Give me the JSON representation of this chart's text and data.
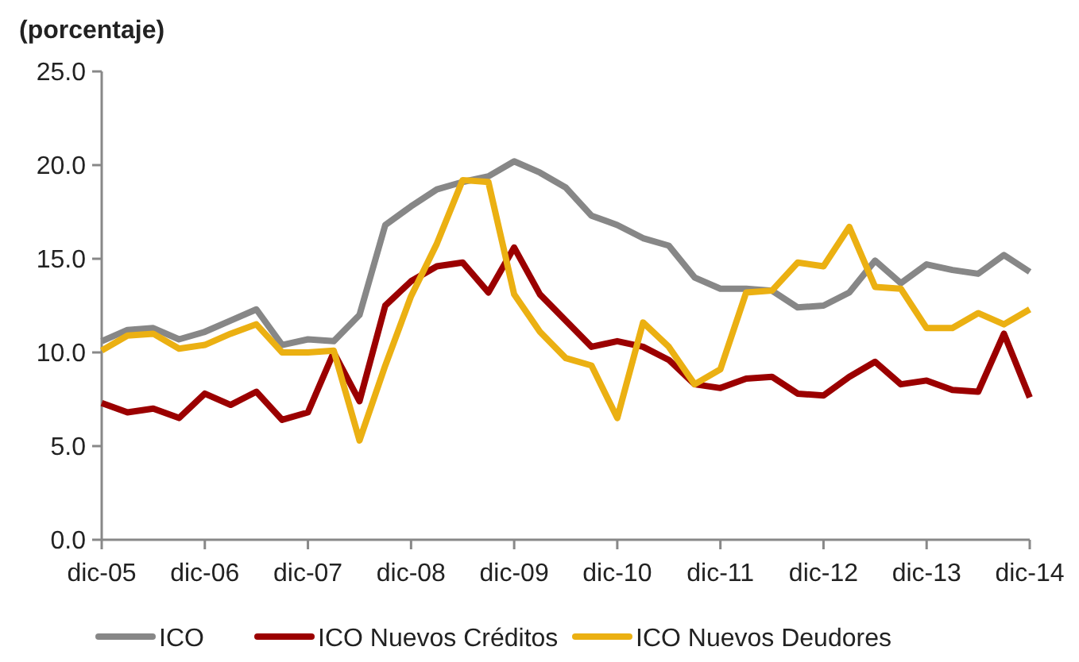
{
  "chart_data": {
    "type": "line",
    "title": "(porcentaje)",
    "categories": [
      "dic-05",
      null,
      null,
      null,
      "dic-06",
      null,
      null,
      null,
      "dic-07",
      null,
      null,
      null,
      "dic-08",
      null,
      null,
      null,
      "dic-09",
      null,
      null,
      null,
      "dic-10",
      null,
      null,
      null,
      "dic-11",
      null,
      null,
      null,
      "dic-12",
      null,
      null,
      null,
      "dic-13",
      null,
      null,
      null,
      "dic-14"
    ],
    "series": [
      {
        "name": "ICO",
        "color": "#878787",
        "values": [
          10.6,
          11.2,
          11.3,
          10.7,
          11.1,
          11.7,
          12.3,
          10.4,
          10.7,
          10.6,
          12.0,
          16.8,
          17.8,
          18.7,
          19.1,
          19.4,
          20.2,
          19.6,
          18.8,
          17.3,
          16.8,
          16.1,
          15.7,
          14.0,
          13.4,
          13.4,
          13.3,
          12.4,
          12.5,
          13.2,
          14.9,
          13.7,
          14.7,
          14.4,
          14.2,
          15.2,
          14.3
        ]
      },
      {
        "name": "ICO Nuevos Créditos",
        "color": "#9b0000",
        "values": [
          7.3,
          6.8,
          7.0,
          6.5,
          7.8,
          7.2,
          7.9,
          6.4,
          6.8,
          10.0,
          7.4,
          12.5,
          13.8,
          14.6,
          14.8,
          13.2,
          15.6,
          13.1,
          11.7,
          10.3,
          10.6,
          10.3,
          9.6,
          8.3,
          8.1,
          8.6,
          8.7,
          7.8,
          7.7,
          8.7,
          9.5,
          8.3,
          8.5,
          8.0,
          7.9,
          11.0,
          7.6
        ]
      },
      {
        "name": "ICO Nuevos Deudores",
        "color": "#ebb012",
        "values": [
          10.1,
          10.9,
          11.0,
          10.2,
          10.4,
          11.0,
          11.5,
          10.0,
          10.0,
          10.1,
          5.3,
          9.3,
          13.0,
          15.8,
          19.2,
          19.1,
          13.1,
          11.1,
          9.7,
          9.3,
          6.5,
          11.6,
          10.3,
          8.3,
          9.1,
          13.2,
          13.3,
          14.8,
          14.6,
          16.7,
          13.5,
          13.4,
          11.3,
          11.3,
          12.1,
          11.5,
          12.3
        ]
      }
    ],
    "ylim": [
      0,
      25
    ],
    "yticks": [
      {
        "value": 0,
        "label": "0.0"
      },
      {
        "value": 5,
        "label": "5.0"
      },
      {
        "value": 10,
        "label": "10.0"
      },
      {
        "value": 15,
        "label": "15.0"
      },
      {
        "value": 20,
        "label": "20.0"
      },
      {
        "value": 25,
        "label": "25.0"
      }
    ],
    "grid": false,
    "legend": "bottom",
    "marker": "none",
    "line_style": "solid"
  }
}
